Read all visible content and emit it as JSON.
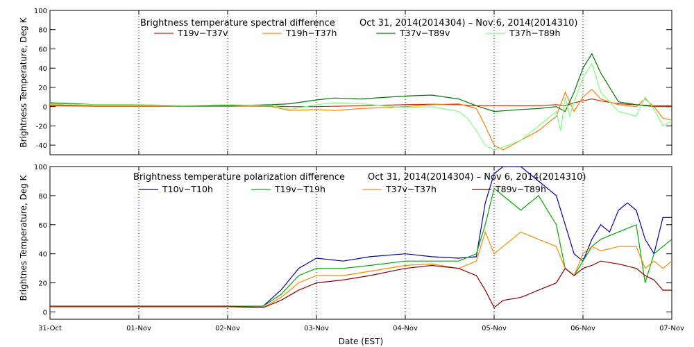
{
  "chart_data": [
    {
      "type": "line",
      "title": "Brightness temperature spectral difference",
      "date_range": "Oct 31, 2014(2014304)  – Nov  6, 2014(2014310)",
      "ylabel": "Brightness Temperature, Deg K",
      "xlabel": "",
      "xlim": [
        0,
        7
      ],
      "ylim": [
        -50,
        100
      ],
      "yticks": [
        -40,
        -20,
        0,
        20,
        40,
        60,
        80,
        100
      ],
      "x_ticks": [
        0,
        1,
        2,
        3,
        4,
        5,
        6,
        7
      ],
      "grid": "dotted vertical lines at day boundaries",
      "legend_position": "top",
      "series": [
        {
          "name": "T19v−T37v",
          "color": "#cc2200",
          "x": [
            0,
            0.5,
            1,
            1.5,
            2,
            2.5,
            2.7,
            3,
            3.5,
            4,
            4.3,
            4.6,
            4.8,
            5,
            5.3,
            5.5,
            5.7,
            5.8,
            5.9,
            6,
            6.1,
            6.2,
            6.4,
            6.6,
            6.8,
            7
          ],
          "y": [
            1,
            0.5,
            0.5,
            0.5,
            0.5,
            0.5,
            0,
            0,
            1,
            2,
            2.5,
            2,
            1,
            1,
            1,
            1,
            2,
            1,
            4,
            6,
            8,
            6,
            3,
            2,
            1,
            1
          ]
        },
        {
          "name": "T19h−T37h",
          "color": "#ff7f00",
          "x": [
            0,
            0.5,
            1,
            1.5,
            2,
            2.5,
            2.7,
            3,
            3.2,
            3.5,
            4,
            4.3,
            4.6,
            4.8,
            4.9,
            5,
            5.1,
            5.3,
            5.5,
            5.7,
            5.8,
            5.85,
            5.9,
            6,
            6.1,
            6.2,
            6.4,
            6.6,
            6.7,
            6.8,
            6.9,
            7
          ],
          "y": [
            2,
            1,
            1,
            1,
            1,
            0,
            -4,
            -3,
            -4,
            -2,
            0,
            2,
            3,
            -2,
            -20,
            -40,
            -45,
            -35,
            -25,
            -10,
            15,
            5,
            -5,
            10,
            18,
            8,
            2,
            0,
            8,
            0,
            -12,
            -14
          ]
        },
        {
          "name": "T37v−T89v",
          "color": "#007700",
          "x": [
            0,
            0.3,
            0.5,
            1,
            1.5,
            2,
            2.5,
            2.7,
            3,
            3.2,
            3.5,
            4,
            4.3,
            4.6,
            4.8,
            5,
            5.3,
            5.5,
            5.7,
            5.8,
            5.9,
            6,
            6.1,
            6.2,
            6.4,
            6.6,
            6.8,
            7
          ],
          "y": [
            4,
            3,
            2,
            2,
            1,
            1,
            2,
            3,
            7,
            9,
            8,
            11,
            12,
            8,
            1,
            -5,
            -3,
            -2,
            0,
            -5,
            15,
            40,
            55,
            35,
            5,
            2,
            0,
            0
          ]
        },
        {
          "name": "T37h−T89h",
          "color": "#7fff7f",
          "x": [
            0,
            0.5,
            1,
            1.5,
            2,
            2.5,
            2.7,
            3,
            3.2,
            3.5,
            4,
            4.3,
            4.6,
            4.7,
            4.8,
            4.9,
            5,
            5.1,
            5.3,
            5.5,
            5.7,
            5.75,
            5.8,
            5.85,
            5.9,
            6,
            6.1,
            6.2,
            6.4,
            6.6,
            6.7,
            6.8,
            6.9,
            7
          ],
          "y": [
            3,
            2,
            2,
            1,
            2,
            1,
            -3,
            2,
            4,
            3,
            -1,
            0,
            -5,
            -12,
            -25,
            -40,
            -45,
            -42,
            -35,
            -20,
            -5,
            -25,
            10,
            -10,
            5,
            30,
            45,
            15,
            -5,
            -10,
            10,
            -3,
            -20,
            -15
          ]
        }
      ]
    },
    {
      "type": "line",
      "title": "Brightness temperature polarization difference",
      "date_range": "Oct 31, 2014(2014304)  – Nov  6, 2014(2014310)",
      "ylabel": "Brightnes Temperature, Deg K",
      "xlabel": "Date (EST)",
      "xlim": [
        0,
        7
      ],
      "ylim": [
        -5,
        100
      ],
      "yticks": [
        0,
        20,
        40,
        60,
        80,
        100
      ],
      "x_ticks": [
        0,
        1,
        2,
        3,
        4,
        5,
        6,
        7
      ],
      "x_tick_labels": [
        "31-Oct",
        "01-Nov",
        "02-Nov",
        "03-Nov",
        "04-Nov",
        "05-Nov",
        "06-Nov",
        "07-Nov"
      ],
      "grid": "dotted vertical lines at day boundaries",
      "legend_position": "top",
      "series": [
        {
          "name": "T10v−T10h",
          "color": "#0000aa",
          "x": [
            0,
            0.5,
            1,
            1.5,
            2,
            2.4,
            2.6,
            2.8,
            3,
            3.3,
            3.6,
            4,
            4.3,
            4.6,
            4.8,
            4.9,
            5,
            5.1,
            5.3,
            5.5,
            5.7,
            5.8,
            5.9,
            6,
            6.1,
            6.2,
            6.3,
            6.4,
            6.5,
            6.6,
            6.7,
            6.8,
            6.9,
            7
          ],
          "y": [
            4,
            4,
            4,
            4,
            4,
            4,
            15,
            30,
            37,
            35,
            38,
            40,
            38,
            37,
            38,
            75,
            95,
            100,
            100,
            90,
            80,
            60,
            40,
            35,
            50,
            60,
            55,
            70,
            75,
            70,
            50,
            40,
            65,
            65
          ]
        },
        {
          "name": "T19v−T19h",
          "color": "#00aa00",
          "x": [
            0,
            0.5,
            1,
            1.5,
            2,
            2.4,
            2.6,
            2.8,
            3,
            3.3,
            3.6,
            4,
            4.3,
            4.6,
            4.8,
            4.9,
            5,
            5.1,
            5.3,
            5.5,
            5.7,
            5.8,
            5.9,
            6,
            6.1,
            6.2,
            6.4,
            6.6,
            6.7,
            6.8,
            6.9,
            7
          ],
          "y": [
            4,
            4,
            4,
            4,
            4,
            4,
            12,
            25,
            30,
            30,
            32,
            35,
            35,
            35,
            40,
            60,
            85,
            80,
            70,
            80,
            60,
            30,
            25,
            35,
            45,
            50,
            55,
            60,
            20,
            40,
            45,
            50
          ]
        },
        {
          "name": "T37v−T37h",
          "color": "#ff8800",
          "x": [
            0,
            0.5,
            1,
            1.5,
            2,
            2.4,
            2.6,
            2.8,
            3,
            3.3,
            3.6,
            4,
            4.3,
            4.6,
            4.8,
            4.9,
            5,
            5.1,
            5.3,
            5.5,
            5.7,
            5.8,
            5.9,
            6,
            6.1,
            6.2,
            6.4,
            6.6,
            6.7,
            6.8,
            6.9,
            7
          ],
          "y": [
            3,
            3,
            3,
            3,
            3,
            3,
            10,
            20,
            25,
            25,
            28,
            32,
            33,
            30,
            35,
            55,
            40,
            45,
            55,
            50,
            45,
            30,
            25,
            40,
            45,
            42,
            45,
            45,
            30,
            35,
            30,
            35
          ]
        },
        {
          "name": "T89v−T89h",
          "color": "#880000",
          "x": [
            0,
            0.5,
            1,
            1.5,
            2,
            2.4,
            2.6,
            2.8,
            3,
            3.3,
            3.6,
            4,
            4.3,
            4.6,
            4.8,
            4.9,
            5,
            5.1,
            5.3,
            5.5,
            5.7,
            5.8,
            5.9,
            6,
            6.1,
            6.2,
            6.4,
            6.6,
            6.7,
            6.8,
            6.9,
            7
          ],
          "y": [
            4,
            4,
            4,
            4,
            4,
            3,
            8,
            15,
            20,
            22,
            25,
            30,
            32,
            30,
            25,
            15,
            3,
            8,
            10,
            15,
            20,
            30,
            25,
            30,
            32,
            35,
            33,
            30,
            25,
            22,
            15,
            15
          ]
        }
      ]
    }
  ]
}
